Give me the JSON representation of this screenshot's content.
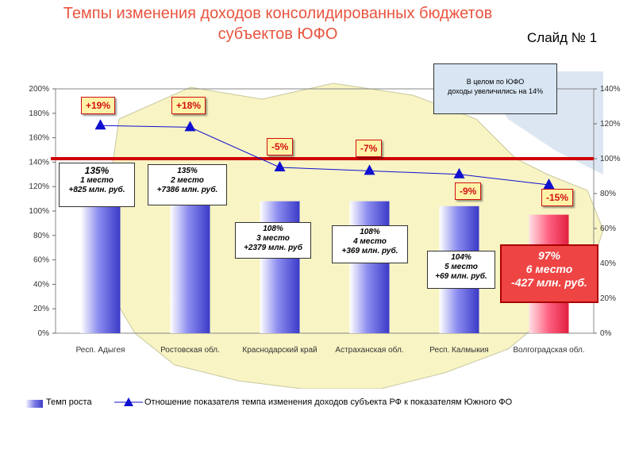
{
  "title": "Темпы изменения доходов консолидированных бюджетов субъектов ЮФО",
  "slide_label": "Слайд № 1",
  "note": {
    "line1": "В целом по ЮФО",
    "line2": "доходы увеличились на 14%"
  },
  "legend": {
    "bars": "Темп роста",
    "line": "Отношение показателя темпа изменения доходов субъекта РФ к показателям Южного ФО"
  },
  "colors": {
    "title": "#e8543e",
    "bar": "#6060d8",
    "bar_highlight": "#ff4060",
    "line": "#1010d0",
    "reference": "#d00000"
  },
  "chart_data": {
    "type": "bar",
    "categories": [
      "Респ. Адыгея",
      "Ростовская обл.",
      "Краснодарский край",
      "Астраханская обл.",
      "Респ. Калмыкия",
      "Волгоградская обл."
    ],
    "bar_values": [
      135,
      135,
      108,
      108,
      104,
      97
    ],
    "bar_axis_range": [
      0,
      200
    ],
    "bar_axis_ticks": [
      "0%",
      "20%",
      "40%",
      "60%",
      "80%",
      "100%",
      "120%",
      "140%",
      "160%",
      "180%",
      "200%"
    ],
    "line_values": [
      119,
      118,
      95,
      93,
      91,
      85
    ],
    "line_axis_range": [
      0,
      140
    ],
    "line_axis_ticks": [
      "0%",
      "20%",
      "40%",
      "60%",
      "80%",
      "100%",
      "120%",
      "140%"
    ],
    "reference_value": 100,
    "line_labels": [
      "+19%",
      "+18%",
      "-5%",
      "-7%",
      "-9%",
      "-15%"
    ],
    "annotations": [
      {
        "pct": "135%",
        "place": "1 место",
        "amount": "+825 млн. руб."
      },
      {
        "pct": "135%",
        "place": "2 место",
        "amount": "+7386 млн. руб."
      },
      {
        "pct": "108%",
        "place": "3 место",
        "amount": "+2379 млн. руб"
      },
      {
        "pct": "108%",
        "place": "4 место",
        "amount": "+369 млн. руб."
      },
      {
        "pct": "104%",
        "place": "5 место",
        "amount": "+69 млн. руб."
      },
      {
        "pct": "97%",
        "place": "6 место",
        "amount": "-427 млн. руб."
      }
    ],
    "legend_position": "bottom"
  }
}
